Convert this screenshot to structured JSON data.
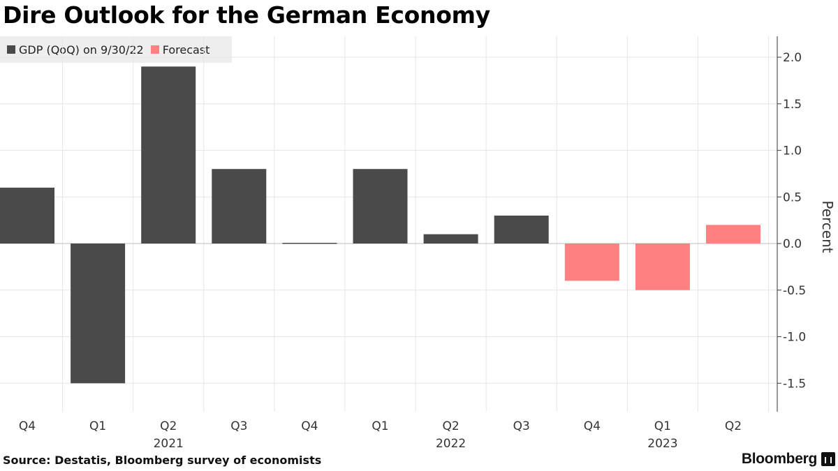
{
  "title": "Dire Outlook for the German Economy",
  "legend": [
    {
      "label": "GDP (QoQ) on 9/30/22",
      "color": "#4a4a4a"
    },
    {
      "label": "Forecast",
      "color": "#ff8080"
    }
  ],
  "source": "Source: Destatis, Bloomberg survey of economists",
  "brand": "Bloomberg",
  "chart_data": {
    "type": "bar",
    "categories": [
      "Q4",
      "Q1",
      "Q2",
      "Q3",
      "Q4",
      "Q1",
      "Q2",
      "Q3",
      "Q4",
      "Q1",
      "Q2"
    ],
    "year_labels": [
      {
        "label": "2021",
        "category_index": 2
      },
      {
        "label": "2022",
        "category_index": 6
      },
      {
        "label": "2023",
        "category_index": 9
      }
    ],
    "series": [
      {
        "name": "GDP (QoQ) on 9/30/22",
        "color": "#4a4a4a",
        "values": [
          0.6,
          -1.5,
          1.9,
          0.8,
          0.0,
          0.8,
          0.1,
          0.3,
          null,
          null,
          null
        ]
      },
      {
        "name": "Forecast",
        "color": "#ff8080",
        "values": [
          null,
          null,
          null,
          null,
          null,
          null,
          null,
          null,
          -0.4,
          -0.5,
          0.2
        ]
      }
    ],
    "ylabel": "Percent",
    "yticks": [
      2.0,
      1.5,
      1.0,
      0.5,
      0.0,
      -0.5,
      -1.0,
      -1.5
    ],
    "ylim": [
      -1.75,
      2.2
    ],
    "axis_position": "right",
    "grid": true
  }
}
